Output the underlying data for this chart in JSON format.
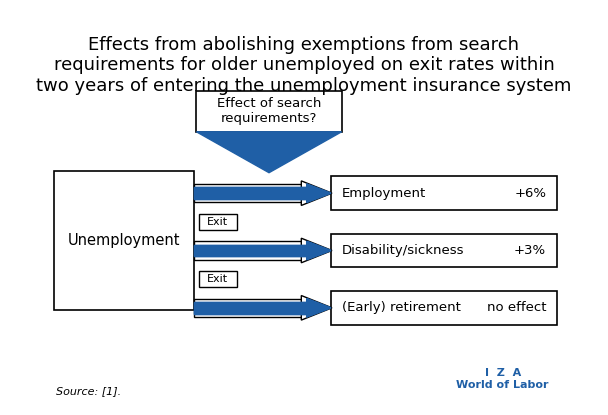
{
  "title": "Effects from abolishing exemptions from search\nrequirements for older unemployed on exit rates within\ntwo years of entering the unemployment insurance system",
  "title_fontsize": 13,
  "background_color": "#ffffff",
  "border_color": "#aaaaaa",
  "blue_color": "#1F5FA6",
  "box_edge_color": "#000000",
  "source_text": "Source: [1].",
  "iza_text": "I  Z  A\nWorld of Labor",
  "top_box_text": "Effect of search\nrequirements?",
  "left_box_text": "Unemployment",
  "right_boxes": [
    "Employment",
    "Disability/sickness",
    "(Early) retirement"
  ],
  "right_values": [
    "+6%",
    "+3%",
    "no effect"
  ],
  "exit_labels": [
    "Exit",
    "Exit"
  ]
}
